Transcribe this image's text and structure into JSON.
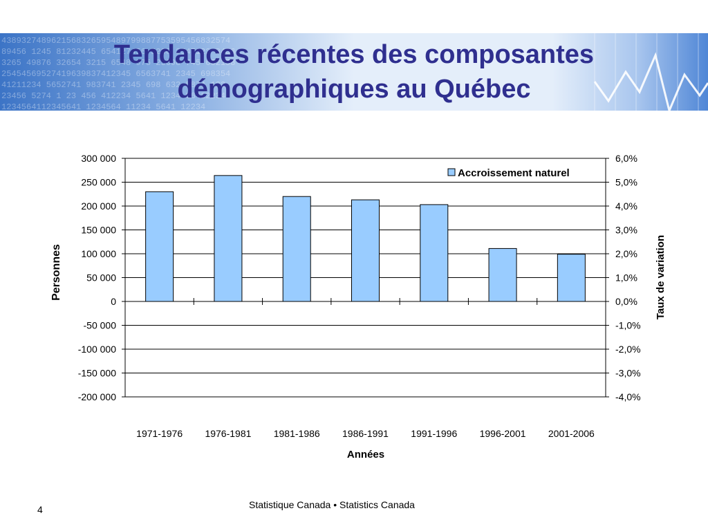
{
  "slide": {
    "title_line1": "Tendances récentes des composantes",
    "title_line2": "démographiques au Québec",
    "page_number": "4",
    "footer": "Statistique Canada • Statistics Canada"
  },
  "colors": {
    "title": "#2f2f8f",
    "bar_fill": "#99ccff",
    "bar_stroke": "#000000",
    "banner_light": "#e4eefa",
    "banner_dark": "#3c74c6"
  },
  "chart_data": {
    "type": "bar",
    "categories": [
      "1971-1976",
      "1976-1981",
      "1981-1986",
      "1986-1991",
      "1991-1996",
      "1996-2001",
      "2001-2006"
    ],
    "series": [
      {
        "name": "Accroissement naturel",
        "values": [
          230000,
          264000,
          220000,
          213000,
          203000,
          111000,
          99000
        ]
      }
    ],
    "xlabel": "Années",
    "ylabel": "Personnes",
    "y2label": "Taux de variation",
    "ylim": [
      -200000,
      300000
    ],
    "y2lim": [
      -4.0,
      6.0
    ],
    "yticks": [
      "-200 000",
      "-150 000",
      "-100 000",
      "-50 000",
      "0",
      "50 000",
      "100 000",
      "150 000",
      "200 000",
      "250 000",
      "300 000"
    ],
    "y2ticks": [
      "-4,0%",
      "-3,0%",
      "-2,0%",
      "-1,0%",
      "0,0%",
      "1,0%",
      "2,0%",
      "3,0%",
      "4,0%",
      "5,0%",
      "6,0%"
    ],
    "grid": true,
    "legend_position": "top-right"
  }
}
